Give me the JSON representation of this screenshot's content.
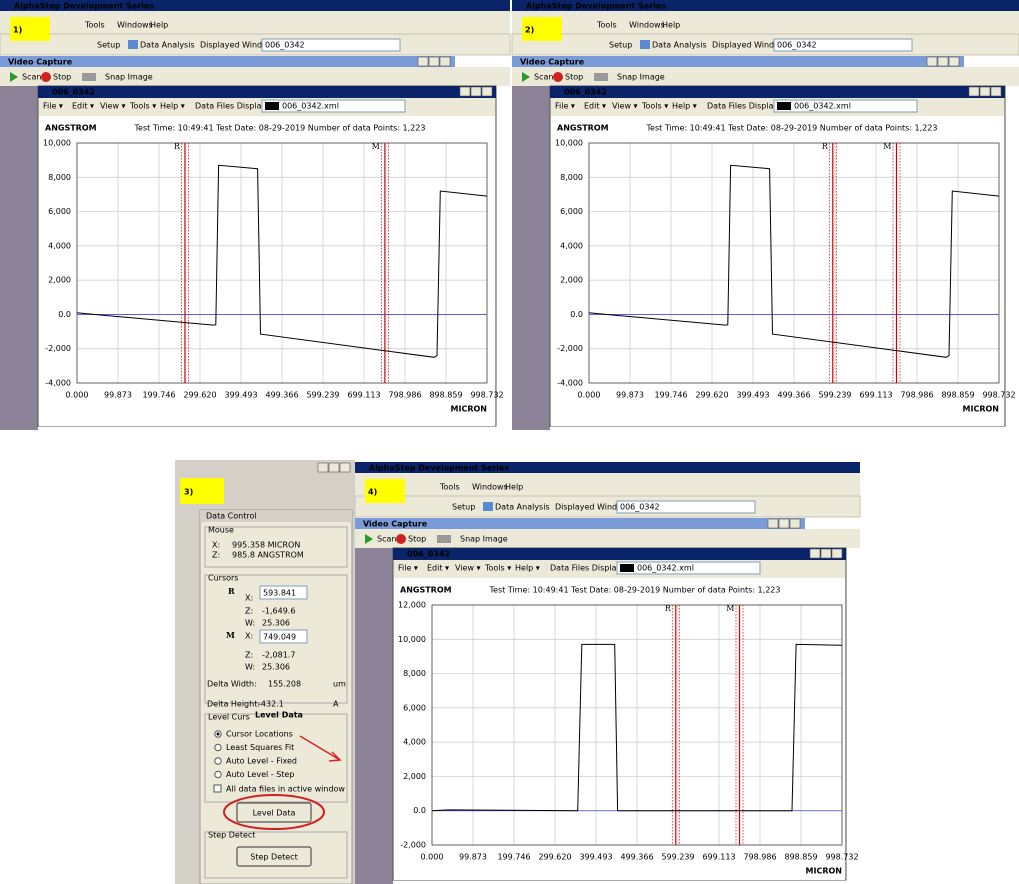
{
  "app": {
    "title": "AlphaStep Development Series",
    "menu": [
      "Tools",
      "Windows",
      "Help"
    ],
    "setup": "Setup",
    "data_analysis": "Data Analysis",
    "displayed_windows_label": "Displayed Windows:",
    "displayed_windows_value": "006_0342"
  },
  "video_capture": {
    "title": "Video Capture",
    "scan": "Scan",
    "stop": "Stop",
    "snap": "Snap Image"
  },
  "document": {
    "title": "006_0342",
    "menu": [
      "File ▾",
      "Edit ▾",
      "View ▾",
      "Tools ▾",
      "Help ▾"
    ],
    "files_label": "Data Files Displayed:",
    "file": "006_0342.xml",
    "y_unit": "ANGSTROM",
    "info": "Test Time: 10:49:41  Test Date: 08-29-2019  Number of data Points: 1,223",
    "x_unit": "MICRON",
    "xlim": [
      0,
      998.732
    ],
    "xticks": [
      {
        "value": 0,
        "label": "0.000"
      },
      99.873,
      199.746,
      {
        "value": 299.62,
        "label": "299.620"
      },
      399.493,
      499.366,
      599.239,
      699.113,
      798.986,
      898.859,
      998.732
    ]
  },
  "panels": [
    {
      "label": "1)",
      "ylim": [
        -4000,
        10000
      ],
      "yticks": [
        {
          "value": -4000,
          "label": "-4,000"
        },
        {
          "value": -2000,
          "label": "-2,000"
        },
        {
          "value": 0,
          "label": "0.0"
        },
        {
          "value": 2000,
          "label": "2,000"
        },
        {
          "value": 4000,
          "label": "4,000"
        },
        {
          "value": 6000,
          "label": "6,000"
        },
        {
          "value": 8000,
          "label": "8,000"
        },
        {
          "value": 10000,
          "label": "10,000"
        }
      ],
      "cursors": [
        {
          "name": "R",
          "x": 263
        },
        {
          "name": "M",
          "x": 750
        }
      ],
      "trace": {
        "x": [
          0,
          40,
          333,
          338,
          345,
          440,
          447,
          870,
          877,
          885,
          998.732
        ],
        "y": [
          100,
          0,
          -620,
          -600,
          8700,
          8500,
          -1150,
          -2500,
          -2400,
          7200,
          6900
        ]
      }
    },
    {
      "label": "2)",
      "ylim": [
        -4000,
        10000
      ],
      "yticks": [
        {
          "value": -4000,
          "label": "-4,000"
        },
        {
          "value": -2000,
          "label": "-2,000"
        },
        {
          "value": 0,
          "label": "0.0"
        },
        {
          "value": 2000,
          "label": "2,000"
        },
        {
          "value": 4000,
          "label": "4,000"
        },
        {
          "value": 6000,
          "label": "6,000"
        },
        {
          "value": 8000,
          "label": "8,000"
        },
        {
          "value": 10000,
          "label": "10,000"
        }
      ],
      "cursors": [
        {
          "name": "R",
          "x": 593.841
        },
        {
          "name": "M",
          "x": 749.049
        }
      ],
      "trace": {
        "x": [
          0,
          40,
          333,
          338,
          345,
          440,
          447,
          870,
          877,
          885,
          998.732
        ],
        "y": [
          100,
          0,
          -620,
          -600,
          8700,
          8500,
          -1150,
          -2500,
          -2400,
          7200,
          6900
        ]
      }
    },
    {
      "label": "4)",
      "ylim": [
        -2000,
        12000
      ],
      "yticks": [
        {
          "value": -2000,
          "label": "-2,000"
        },
        {
          "value": 0,
          "label": "0.0"
        },
        {
          "value": 2000,
          "label": "2,000"
        },
        {
          "value": 4000,
          "label": "4,000"
        },
        {
          "value": 6000,
          "label": "6,000"
        },
        {
          "value": 8000,
          "label": "8,000"
        },
        {
          "value": 10000,
          "label": "10,000"
        },
        {
          "value": 12000,
          "label": "12,000"
        }
      ],
      "cursors": [
        {
          "name": "R",
          "x": 593.841
        },
        {
          "name": "M",
          "x": 749.049
        }
      ],
      "trace": {
        "x": [
          0,
          40,
          355,
          365,
          445,
          452,
          877,
          887,
          998.732
        ],
        "y": [
          0,
          50,
          0,
          9700,
          9700,
          0,
          0,
          9700,
          9650
        ]
      }
    }
  ],
  "step3_label": "3)",
  "data_control": {
    "title": "Data Control",
    "mouse": "Mouse",
    "mouse_x_label": "X:",
    "mouse_x": "995.358 MICRON",
    "mouse_z_label": "Z:",
    "mouse_z": "985.8 ANGSTROM",
    "cursors": "Cursors",
    "r": "R",
    "r_x_label": "X:",
    "r_x": "593.841",
    "r_z_label": "Z:",
    "r_z": "-1,649.6",
    "r_w_label": "W:",
    "r_w": "25.306",
    "m": "M",
    "m_x_label": "X:",
    "m_x": "749.049",
    "m_z_label": "Z:",
    "m_z": "-2,081.7",
    "m_w_label": "W:",
    "m_w": "25.306",
    "delta_width_label": "Delta Width:",
    "delta_width": "155.208",
    "delta_width_unit": "um",
    "delta_height_label": "Delta Height:",
    "delta_height": "-432.1",
    "delta_height_unit": "A",
    "level_group": "Level Curs",
    "options": [
      "Cursor Locations",
      "Least Squares Fit",
      "Auto Level - Fixed",
      "Auto Level - Step"
    ],
    "all_files": "All data files in active window",
    "level_button": "Level Data",
    "step_group": "Step Detect",
    "step_button": "Step Detect"
  },
  "annotation": "Level Data"
}
